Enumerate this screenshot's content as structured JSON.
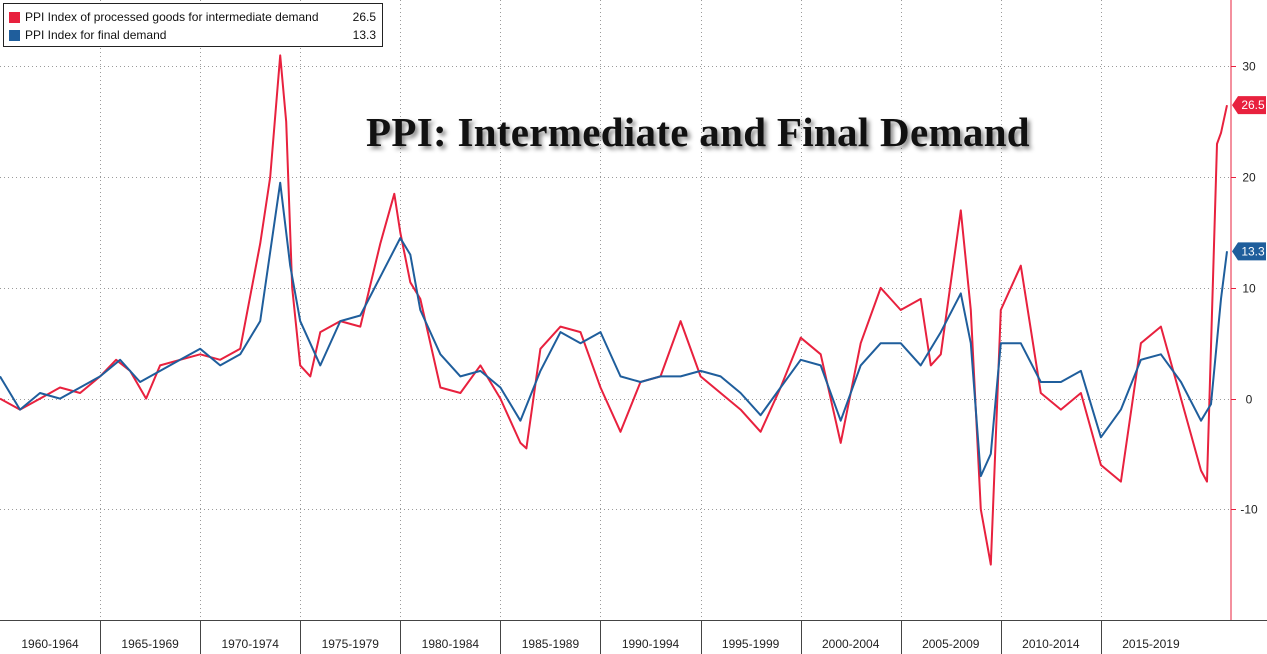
{
  "title": "PPI: Intermediate and Final Demand",
  "legend": [
    {
      "label": "PPI Index of processed goods for intermediate demand",
      "value": "26.5",
      "color": "#e8213e"
    },
    {
      "label": "PPI Index for final demand",
      "value": "13.3",
      "color": "#1f5e9c"
    }
  ],
  "chart_data": {
    "type": "line",
    "title": "PPI: Intermediate and Final Demand",
    "xlabel": "",
    "ylabel": "",
    "xlim": [
      1960,
      2021.5
    ],
    "ylim": [
      -20,
      36
    ],
    "y_axis_position": "right",
    "grid": true,
    "legend_position": "top-left",
    "categories": [
      "1960-1964",
      "1965-1969",
      "1970-1974",
      "1975-1979",
      "1980-1984",
      "1985-1989",
      "1990-1994",
      "1995-1999",
      "2000-2004",
      "2005-2009",
      "2010-2014",
      "2015-2019"
    ],
    "y_ticks": [
      -10,
      0,
      10,
      20,
      30
    ],
    "series": [
      {
        "name": "PPI Index of processed goods for intermediate demand",
        "color": "#e8213e",
        "last_value_label": "26.5",
        "x": [
          1960.0,
          1961.0,
          1962.0,
          1963.0,
          1964.0,
          1965.0,
          1965.8,
          1966.5,
          1967.3,
          1968.0,
          1969.0,
          1970.0,
          1971.0,
          1972.0,
          1973.0,
          1973.5,
          1974.0,
          1974.3,
          1974.6,
          1975.0,
          1975.5,
          1976.0,
          1977.0,
          1978.0,
          1979.0,
          1979.7,
          1980.0,
          1980.5,
          1981.0,
          1982.0,
          1983.0,
          1984.0,
          1985.0,
          1986.0,
          1986.3,
          1987.0,
          1988.0,
          1989.0,
          1990.0,
          1991.0,
          1992.0,
          1993.0,
          1994.0,
          1995.0,
          1996.0,
          1997.0,
          1998.0,
          1999.0,
          2000.0,
          2001.0,
          2002.0,
          2003.0,
          2004.0,
          2005.0,
          2006.0,
          2006.5,
          2007.0,
          2008.0,
          2008.5,
          2009.0,
          2009.5,
          2010.0,
          2011.0,
          2012.0,
          2013.0,
          2014.0,
          2015.0,
          2016.0,
          2017.0,
          2018.0,
          2019.0,
          2020.0,
          2020.3,
          2020.8,
          2021.0,
          2021.3
        ],
        "y": [
          0.0,
          -1.0,
          0.0,
          1.0,
          0.5,
          2.0,
          3.5,
          2.5,
          0.0,
          3.0,
          3.5,
          4.0,
          3.5,
          4.5,
          14.0,
          20.0,
          31.0,
          25.0,
          10.0,
          3.0,
          2.0,
          6.0,
          7.0,
          6.5,
          14.0,
          18.5,
          15.0,
          10.5,
          9.0,
          1.0,
          0.5,
          3.0,
          0.0,
          -4.0,
          -4.5,
          4.5,
          6.5,
          6.0,
          1.0,
          -3.0,
          1.5,
          2.0,
          7.0,
          2.0,
          0.5,
          -1.0,
          -3.0,
          1.0,
          5.5,
          4.0,
          -4.0,
          5.0,
          10.0,
          8.0,
          9.0,
          3.0,
          4.0,
          17.0,
          8.0,
          -10.0,
          -15.0,
          8.0,
          12.0,
          0.5,
          -1.0,
          0.5,
          -6.0,
          -7.5,
          5.0,
          6.5,
          0.0,
          -6.5,
          -7.5,
          23.0,
          24.0,
          26.5
        ]
      },
      {
        "name": "PPI Index for final demand",
        "color": "#1f5e9c",
        "last_value_label": "13.3",
        "x": [
          1960.0,
          1961.0,
          1962.0,
          1963.0,
          1964.0,
          1965.0,
          1966.0,
          1967.0,
          1968.0,
          1969.0,
          1970.0,
          1971.0,
          1972.0,
          1973.0,
          1974.0,
          1974.5,
          1975.0,
          1976.0,
          1977.0,
          1978.0,
          1979.0,
          1980.0,
          1980.5,
          1981.0,
          1982.0,
          1983.0,
          1984.0,
          1985.0,
          1986.0,
          1987.0,
          1988.0,
          1989.0,
          1990.0,
          1991.0,
          1992.0,
          1993.0,
          1994.0,
          1995.0,
          1996.0,
          1997.0,
          1998.0,
          1999.0,
          2000.0,
          2001.0,
          2002.0,
          2003.0,
          2004.0,
          2005.0,
          2006.0,
          2007.0,
          2008.0,
          2008.5,
          2009.0,
          2009.5,
          2010.0,
          2011.0,
          2012.0,
          2013.0,
          2014.0,
          2015.0,
          2016.0,
          2017.0,
          2018.0,
          2019.0,
          2020.0,
          2020.5,
          2021.0,
          2021.3
        ],
        "y": [
          2.0,
          -1.0,
          0.5,
          0.0,
          1.0,
          2.0,
          3.5,
          1.5,
          2.5,
          3.5,
          4.5,
          3.0,
          4.0,
          7.0,
          19.5,
          12.0,
          7.0,
          3.0,
          7.0,
          7.5,
          11.0,
          14.5,
          13.0,
          8.0,
          4.0,
          2.0,
          2.5,
          1.0,
          -2.0,
          2.5,
          6.0,
          5.0,
          6.0,
          2.0,
          1.5,
          2.0,
          2.0,
          2.5,
          2.0,
          0.5,
          -1.5,
          1.0,
          3.5,
          3.0,
          -2.0,
          3.0,
          5.0,
          5.0,
          3.0,
          6.0,
          9.5,
          5.0,
          -7.0,
          -5.0,
          5.0,
          5.0,
          1.5,
          1.5,
          2.5,
          -3.5,
          -1.0,
          3.5,
          4.0,
          1.5,
          -2.0,
          -0.5,
          9.0,
          13.3
        ]
      }
    ]
  }
}
